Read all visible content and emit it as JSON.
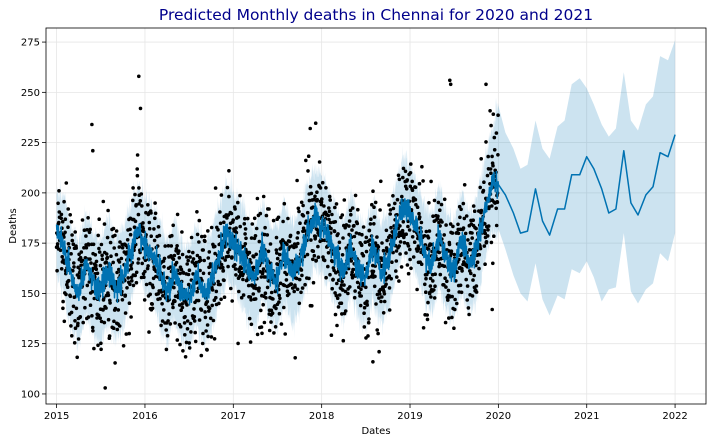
{
  "chart_data": {
    "type": "line",
    "title": "Predicted Monthly deaths in Chennai for 2020 and 2021",
    "xlabel": "Dates",
    "ylabel": "Deaths",
    "xlim": [
      2014.88,
      2022.35
    ],
    "ylim": [
      95,
      282
    ],
    "x_ticks": [
      "2015",
      "2016",
      "2017",
      "2018",
      "2019",
      "2020",
      "2021",
      "2022"
    ],
    "y_ticks": [
      100,
      125,
      150,
      175,
      200,
      225,
      250,
      275
    ],
    "grid": true,
    "colors": {
      "forecast_line": "#0072b2",
      "uncertainty_band": "#0072b2",
      "observed_points": "#000000",
      "title": "#00008b"
    },
    "forecast": {
      "x": [
        2015.0,
        2015.08,
        2015.17,
        2015.25,
        2015.33,
        2015.42,
        2015.5,
        2015.58,
        2015.67,
        2015.75,
        2015.83,
        2015.92,
        2016.0,
        2016.08,
        2016.17,
        2016.25,
        2016.33,
        2016.42,
        2016.5,
        2016.58,
        2016.67,
        2016.75,
        2016.83,
        2016.92,
        2017.0,
        2017.08,
        2017.17,
        2017.25,
        2017.33,
        2017.42,
        2017.5,
        2017.58,
        2017.67,
        2017.75,
        2017.83,
        2017.92,
        2018.0,
        2018.08,
        2018.17,
        2018.25,
        2018.33,
        2018.42,
        2018.5,
        2018.58,
        2018.67,
        2018.75,
        2018.83,
        2018.92,
        2019.0,
        2019.08,
        2019.17,
        2019.25,
        2019.33,
        2019.42,
        2019.5,
        2019.58,
        2019.67,
        2019.75,
        2019.83,
        2019.92,
        2020.0,
        2020.08,
        2020.17,
        2020.25,
        2020.33,
        2020.42,
        2020.5,
        2020.58,
        2020.67,
        2020.75,
        2020.83,
        2020.92,
        2021.0,
        2021.08,
        2021.17,
        2021.25,
        2021.33,
        2021.42,
        2021.5,
        2021.58,
        2021.67,
        2021.75,
        2021.83,
        2021.92,
        2022.0
      ],
      "yhat": [
        180,
        174,
        158,
        150,
        164,
        155,
        151,
        162,
        152,
        157,
        170,
        181,
        175,
        170,
        160,
        150,
        161,
        150,
        148,
        159,
        150,
        156,
        168,
        180,
        176,
        171,
        162,
        158,
        172,
        160,
        158,
        171,
        160,
        165,
        178,
        188,
        184,
        178,
        168,
        160,
        175,
        162,
        158,
        172,
        160,
        166,
        180,
        194,
        190,
        182,
        170,
        165,
        178,
        165,
        162,
        176,
        165,
        172,
        188,
        205,
        204,
        199,
        190,
        180,
        181,
        202,
        186,
        179,
        192,
        192,
        209,
        209,
        218,
        212,
        202,
        190,
        192,
        221,
        195,
        189,
        199,
        203,
        220,
        218,
        229
      ],
      "yhat_lower": [
        158,
        150,
        132,
        125,
        140,
        128,
        125,
        136,
        127,
        132,
        145,
        158,
        152,
        146,
        134,
        125,
        137,
        126,
        123,
        134,
        125,
        131,
        143,
        156,
        152,
        146,
        137,
        133,
        148,
        135,
        133,
        146,
        135,
        141,
        154,
        164,
        160,
        154,
        144,
        136,
        150,
        137,
        133,
        147,
        135,
        142,
        156,
        170,
        166,
        158,
        146,
        140,
        153,
        140,
        137,
        151,
        140,
        147,
        163,
        180,
        180,
        172,
        159,
        150,
        146,
        165,
        147,
        139,
        149,
        147,
        162,
        160,
        166,
        158,
        146,
        152,
        153,
        180,
        151,
        145,
        152,
        155,
        170,
        166,
        180
      ],
      "yhat_upper": [
        202,
        198,
        182,
        175,
        188,
        180,
        176,
        188,
        178,
        182,
        195,
        205,
        198,
        194,
        185,
        175,
        186,
        175,
        173,
        184,
        175,
        181,
        193,
        204,
        200,
        196,
        187,
        183,
        196,
        185,
        183,
        196,
        185,
        190,
        203,
        212,
        208,
        202,
        192,
        185,
        200,
        187,
        183,
        197,
        185,
        190,
        204,
        218,
        214,
        206,
        194,
        190,
        203,
        190,
        187,
        201,
        190,
        197,
        213,
        230,
        244,
        230,
        222,
        212,
        214,
        236,
        222,
        217,
        233,
        236,
        254,
        257,
        252,
        244,
        234,
        228,
        232,
        260,
        236,
        231,
        244,
        248,
        268,
        266,
        276
      ]
    },
    "observed": {
      "x_range": [
        2015.0,
        2020.0
      ],
      "count": 1826,
      "marker": "dot",
      "outliers": [
        {
          "x": 2015.4,
          "y": 234
        },
        {
          "x": 2015.41,
          "y": 221
        },
        {
          "x": 2015.55,
          "y": 103
        },
        {
          "x": 2015.93,
          "y": 258
        },
        {
          "x": 2015.95,
          "y": 242
        },
        {
          "x": 2016.95,
          "y": 211
        },
        {
          "x": 2017.7,
          "y": 118
        },
        {
          "x": 2017.87,
          "y": 232
        },
        {
          "x": 2018.58,
          "y": 116
        },
        {
          "x": 2018.65,
          "y": 121
        },
        {
          "x": 2019.45,
          "y": 256
        },
        {
          "x": 2019.46,
          "y": 254
        },
        {
          "x": 2019.86,
          "y": 254
        },
        {
          "x": 2019.93,
          "y": 142
        }
      ]
    }
  }
}
